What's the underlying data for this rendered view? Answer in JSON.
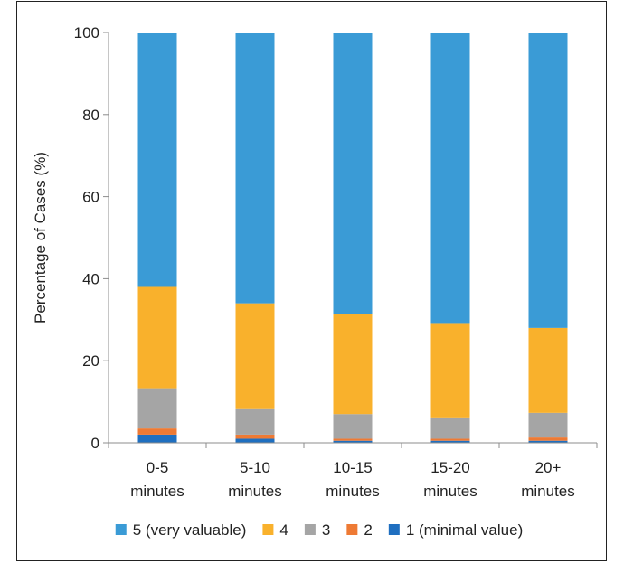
{
  "chart_data": {
    "type": "bar",
    "stacked": true,
    "title": "",
    "xlabel": "",
    "ylabel": "Percentage of Cases (%)",
    "ylim": [
      0,
      100
    ],
    "yticks": [
      0,
      20,
      40,
      60,
      80,
      100
    ],
    "grid": false,
    "legend_position": "bottom",
    "categories": [
      [
        "0-5",
        "minutes"
      ],
      [
        "5-10",
        "minutes"
      ],
      [
        "10-15",
        "minutes"
      ],
      [
        "15-20",
        "minutes"
      ],
      [
        "20+",
        "minutes"
      ]
    ],
    "series": [
      {
        "name": "1 (minimal value)",
        "color": "#1f6fc0",
        "values": [
          2.0,
          1.0,
          0.5,
          0.5,
          0.5
        ]
      },
      {
        "name": "2",
        "color": "#ee7a34",
        "values": [
          1.5,
          1.0,
          0.5,
          0.5,
          0.8
        ]
      },
      {
        "name": "3",
        "color": "#a5a5a5",
        "values": [
          9.8,
          6.2,
          6.0,
          5.2,
          6.0
        ]
      },
      {
        "name": "4",
        "color": "#f9b12c",
        "values": [
          24.7,
          25.8,
          24.3,
          23.0,
          20.7
        ]
      },
      {
        "name": "5 (very valuable)",
        "color": "#3a9bd6",
        "values": [
          62.0,
          66.0,
          68.7,
          70.8,
          72.0
        ]
      }
    ],
    "legend_order": [
      "5 (very valuable)",
      "4",
      "3",
      "2",
      "1 (minimal value)"
    ]
  }
}
